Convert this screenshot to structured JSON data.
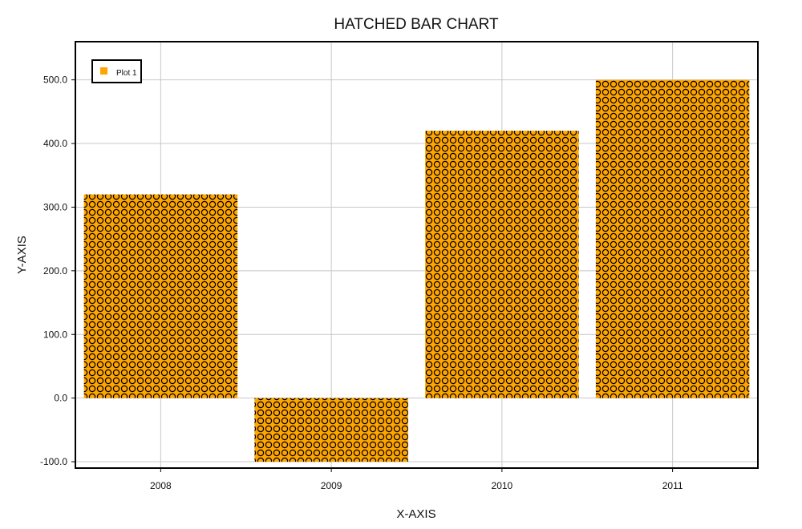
{
  "chart_data": {
    "type": "bar",
    "title": "HATCHED BAR CHART",
    "xlabel": "X-AXIS",
    "ylabel": "Y-AXIS",
    "categories": [
      "2008",
      "2009",
      "2010",
      "2011"
    ],
    "series": [
      {
        "name": "Plot 1",
        "values": [
          320,
          -100,
          420,
          500
        ]
      }
    ],
    "ylim": [
      -110,
      560
    ],
    "yticks": [
      -100,
      0,
      100,
      200,
      300,
      400,
      500
    ],
    "ytick_labels": [
      "-100.0",
      "0.0",
      "100.0",
      "200.0",
      "300.0",
      "400.0",
      "500.0"
    ],
    "grid": true,
    "legend_position": "top-left",
    "bar_color": "#FFA500",
    "hatch": "circles",
    "hatch_color": "#000000"
  }
}
